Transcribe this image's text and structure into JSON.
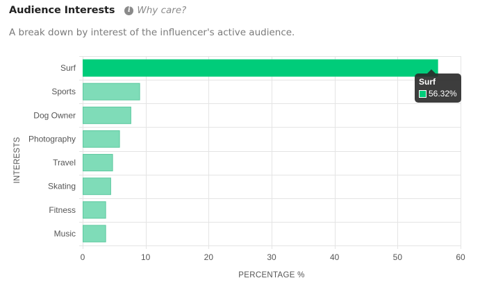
{
  "header": {
    "title": "Audience Interests",
    "info_icon": "info-icon",
    "why_link": "Why care?"
  },
  "subtitle": "A break down by interest of the influencer's active audience.",
  "colors": {
    "bar": "#7fdcb8",
    "bar_border": "#5cc99f",
    "bar_active": "#00cc7a",
    "grid": "#e4e4e4"
  },
  "tooltip": {
    "title": "Surf",
    "value": "56.32%"
  },
  "chart_data": {
    "type": "bar",
    "orientation": "horizontal",
    "categories": [
      "Surf",
      "Sports",
      "Dog Owner",
      "Photography",
      "Travel",
      "Skating",
      "Fitness",
      "Music"
    ],
    "values": [
      56.32,
      9.0,
      7.6,
      5.8,
      4.7,
      4.4,
      3.6,
      3.6
    ],
    "xlabel": "PERCENTAGE %",
    "ylabel": "INTERESTS",
    "xlim": [
      0,
      60
    ],
    "xticks": [
      "0",
      "10",
      "20",
      "30",
      "40",
      "50",
      "60"
    ],
    "grid": true,
    "highlighted": "Surf"
  }
}
